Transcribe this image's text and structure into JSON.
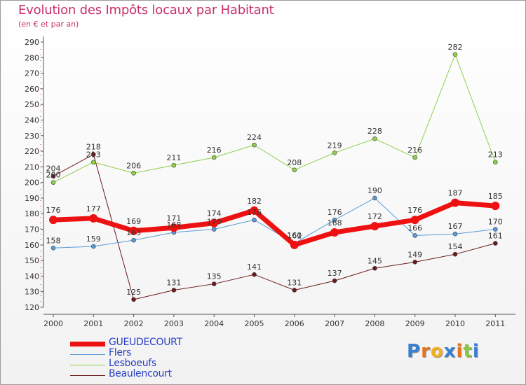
{
  "title": "Evolution des Impôts locaux par Habitant",
  "subtitle": "(en € et par an)",
  "logo": {
    "letters": [
      "P",
      "r",
      "o",
      "x",
      "i",
      "t",
      "i"
    ],
    "colors": [
      "#3a7fd0",
      "#e8731a",
      "#f0b020",
      "#3a7fd0",
      "#e8731a",
      "#8ac640",
      "#3a7fd0"
    ]
  },
  "chart_data": {
    "type": "line",
    "title": "Evolution des Impôts locaux par Habitant",
    "xlabel": "",
    "ylabel": "",
    "ylim": [
      120,
      290
    ],
    "yticks": [
      "120",
      "130",
      "140",
      "150",
      "160",
      "170",
      "180",
      "190",
      "200",
      "210",
      "220",
      "230",
      "240",
      "250",
      "260",
      "270",
      "280",
      "290"
    ],
    "categories": [
      "2000",
      "2001",
      "2002",
      "2003",
      "2004",
      "2005",
      "2006",
      "2007",
      "2008",
      "2009",
      "2010",
      "2011"
    ],
    "series": [
      {
        "name": "Beaulencourt",
        "color": "#6b1a1a",
        "width": 1,
        "marker": 3,
        "values": [
          204,
          218,
          125,
          131,
          135,
          141,
          131,
          137,
          145,
          149,
          154,
          161
        ]
      },
      {
        "name": "Lesboeufs",
        "color": "#8ed04a",
        "width": 1,
        "marker": 3,
        "values": [
          200,
          213,
          206,
          211,
          216,
          224,
          208,
          219,
          228,
          216,
          282,
          213
        ]
      },
      {
        "name": "Flers",
        "color": "#5a9ad8",
        "width": 1,
        "marker": 3,
        "values": [
          158,
          159,
          163,
          168,
          170,
          176,
          161,
          176,
          190,
          166,
          167,
          170
        ]
      },
      {
        "name": "GUEUDECOURT",
        "color": "#ee1111",
        "width": 7,
        "marker": 6,
        "values": [
          176,
          177,
          169,
          171,
          174,
          182,
          160,
          168,
          172,
          176,
          187,
          185
        ]
      }
    ],
    "legend": [
      "GUEUDECOURT",
      "Flers",
      "Lesboeufs",
      "Beaulencourt"
    ],
    "legend_colors": [
      "#ee1111",
      "#5a9ad8",
      "#8ed04a",
      "#6b1a1a"
    ],
    "legend_widths": [
      7,
      1,
      1,
      1
    ],
    "grid": false
  }
}
